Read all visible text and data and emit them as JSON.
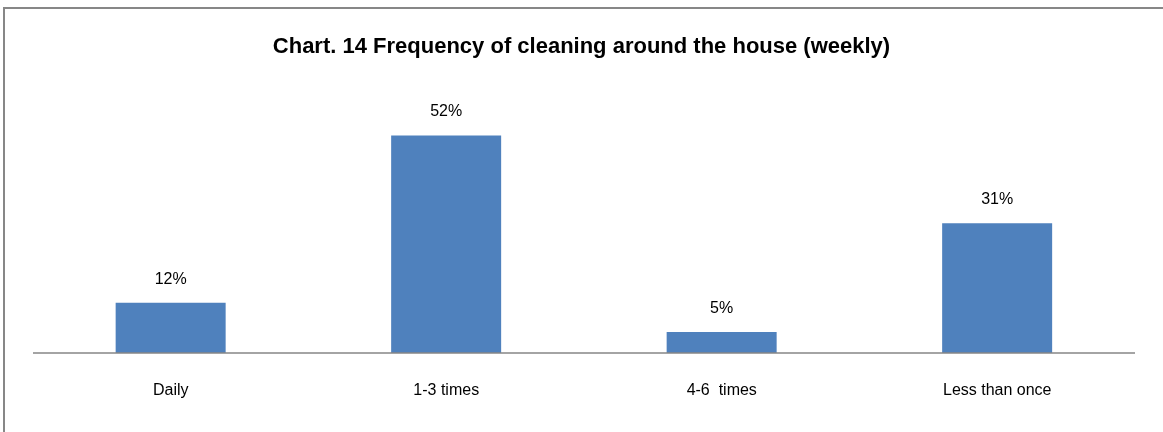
{
  "chart_data": {
    "type": "bar",
    "title": "Chart. 14 Frequency of cleaning around the house (weekly)",
    "categories": [
      "Daily",
      "1-3 times",
      "4-6  times",
      "Less than once"
    ],
    "values": [
      12,
      52,
      5,
      31
    ],
    "value_labels": [
      "12%",
      "52%",
      "5%",
      "31%"
    ],
    "color": "#4f81bd"
  }
}
